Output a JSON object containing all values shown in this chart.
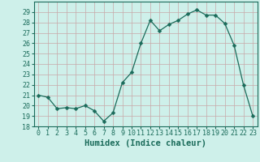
{
  "x": [
    0,
    1,
    2,
    3,
    4,
    5,
    6,
    7,
    8,
    9,
    10,
    11,
    12,
    13,
    14,
    15,
    16,
    17,
    18,
    19,
    20,
    21,
    22,
    23
  ],
  "y": [
    21.0,
    20.8,
    19.7,
    19.8,
    19.7,
    20.0,
    19.5,
    18.5,
    19.3,
    22.2,
    23.2,
    26.0,
    28.2,
    27.2,
    27.8,
    28.2,
    28.8,
    29.2,
    28.7,
    28.7,
    27.9,
    25.8,
    22.0,
    19.0
  ],
  "line_color": "#1a6b5a",
  "marker": "D",
  "marker_size": 2.5,
  "bg_color": "#cef0ea",
  "grid_color": "#c8a8a8",
  "xlabel": "Humidex (Indice chaleur)",
  "xlim": [
    -0.5,
    23.5
  ],
  "ylim": [
    18,
    30
  ],
  "yticks": [
    18,
    19,
    20,
    21,
    22,
    23,
    24,
    25,
    26,
    27,
    28,
    29
  ],
  "xticks": [
    0,
    1,
    2,
    3,
    4,
    5,
    6,
    7,
    8,
    9,
    10,
    11,
    12,
    13,
    14,
    15,
    16,
    17,
    18,
    19,
    20,
    21,
    22,
    23
  ],
  "label_fontsize": 7.5,
  "tick_fontsize": 6.0,
  "fig_width": 3.2,
  "fig_height": 2.0,
  "dpi": 100
}
